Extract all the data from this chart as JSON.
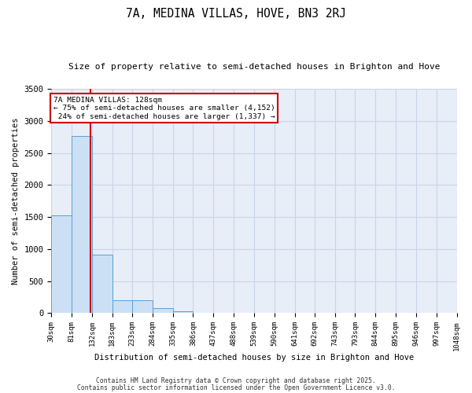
{
  "title": "7A, MEDINA VILLAS, HOVE, BN3 2RJ",
  "subtitle": "Size of property relative to semi-detached houses in Brighton and Hove",
  "xlabel": "Distribution of semi-detached houses by size in Brighton and Hove",
  "ylabel": "Number of semi-detached properties",
  "property_size": 128,
  "property_label": "7A MEDINA VILLAS: 128sqm",
  "pct_smaller": 75,
  "pct_smaller_n": 4152,
  "pct_larger": 24,
  "pct_larger_n": 1337,
  "bin_edges": [
    30,
    81,
    132,
    183,
    233,
    284,
    335,
    386,
    437,
    488,
    539,
    590,
    641,
    692,
    743,
    793,
    844,
    895,
    946,
    997,
    1048
  ],
  "bar_heights": [
    1530,
    2760,
    910,
    200,
    200,
    80,
    30,
    0,
    0,
    0,
    0,
    0,
    0,
    0,
    0,
    0,
    0,
    0,
    0,
    0
  ],
  "bar_color": "#cce0f5",
  "bar_edge_color": "#5a9fd4",
  "grid_color": "#c8d4e8",
  "background_color": "#e8eef8",
  "annotation_box_color": "#ffffff",
  "annotation_box_edge": "#cc0000",
  "red_line_color": "#cc0000",
  "ylim": [
    0,
    3500
  ],
  "yticks": [
    0,
    500,
    1000,
    1500,
    2000,
    2500,
    3000,
    3500
  ],
  "footer1": "Contains HM Land Registry data © Crown copyright and database right 2025.",
  "footer2": "Contains public sector information licensed under the Open Government Licence v3.0."
}
